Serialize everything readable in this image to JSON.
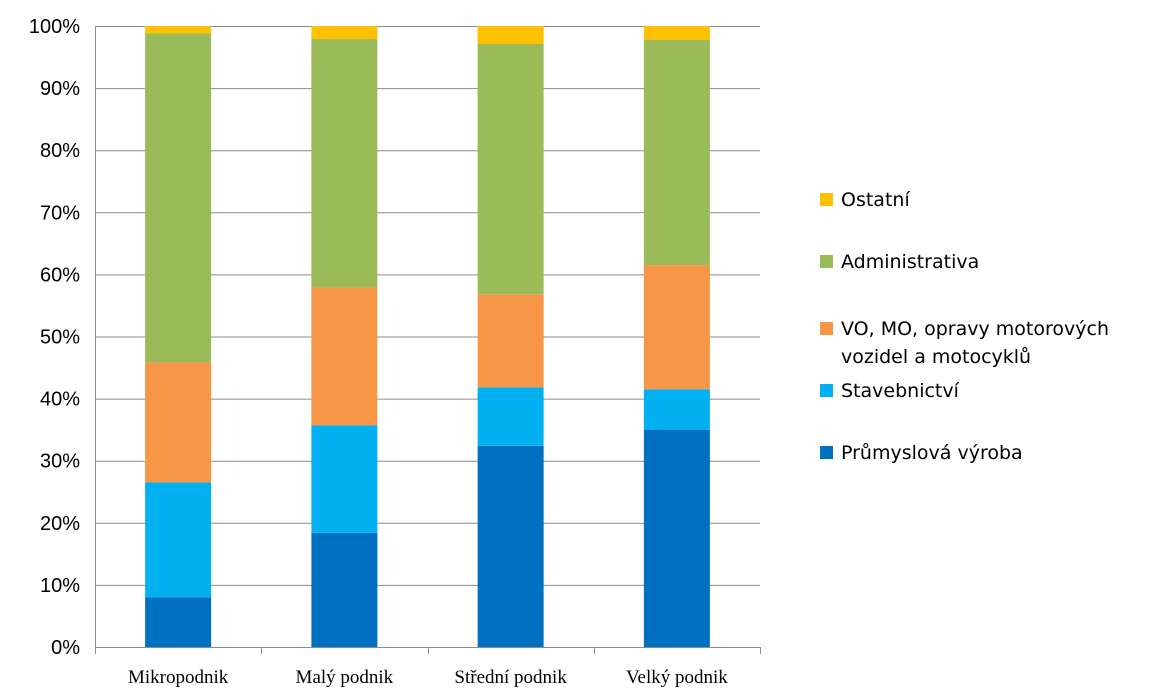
{
  "chart_data": {
    "type": "bar",
    "stacked": true,
    "percent_stacked": true,
    "title": "",
    "xlabel": "",
    "ylabel": "",
    "ylim": [
      0,
      100
    ],
    "y_ticks": [
      "0%",
      "10%",
      "20%",
      "30%",
      "40%",
      "50%",
      "60%",
      "70%",
      "80%",
      "90%",
      "100%"
    ],
    "grid": true,
    "legend_position": "right",
    "categories": [
      "Mikropodnik",
      "Malý podnik",
      "Střední podnik",
      "Velký podnik"
    ],
    "series": [
      {
        "name": "Průmyslová výroba",
        "color": "#0070c0",
        "values": [
          8,
          18.4,
          32.4,
          35
        ]
      },
      {
        "name": "Stavebnictví",
        "color": "#00b0f0",
        "values": [
          18.5,
          17.3,
          9.4,
          6.5
        ]
      },
      {
        "name": "VO, MO, opravy motorových vozidel a motocyklů",
        "color": "#f79646",
        "values": [
          19.3,
          22.2,
          15,
          20
        ]
      },
      {
        "name": "Administrativa",
        "color": "#9bbb59",
        "values": [
          53,
          40,
          40.3,
          36.3
        ]
      },
      {
        "name": "Ostatní",
        "color": "#ffc000",
        "values": [
          1.2,
          2.1,
          2.9,
          2.2
        ]
      }
    ],
    "legend_order": [
      "Ostatní",
      "Administrativa",
      "VO, MO, opravy motorových vozidel a motocyklů",
      "Stavebnictví",
      "Průmyslová výroba"
    ]
  }
}
